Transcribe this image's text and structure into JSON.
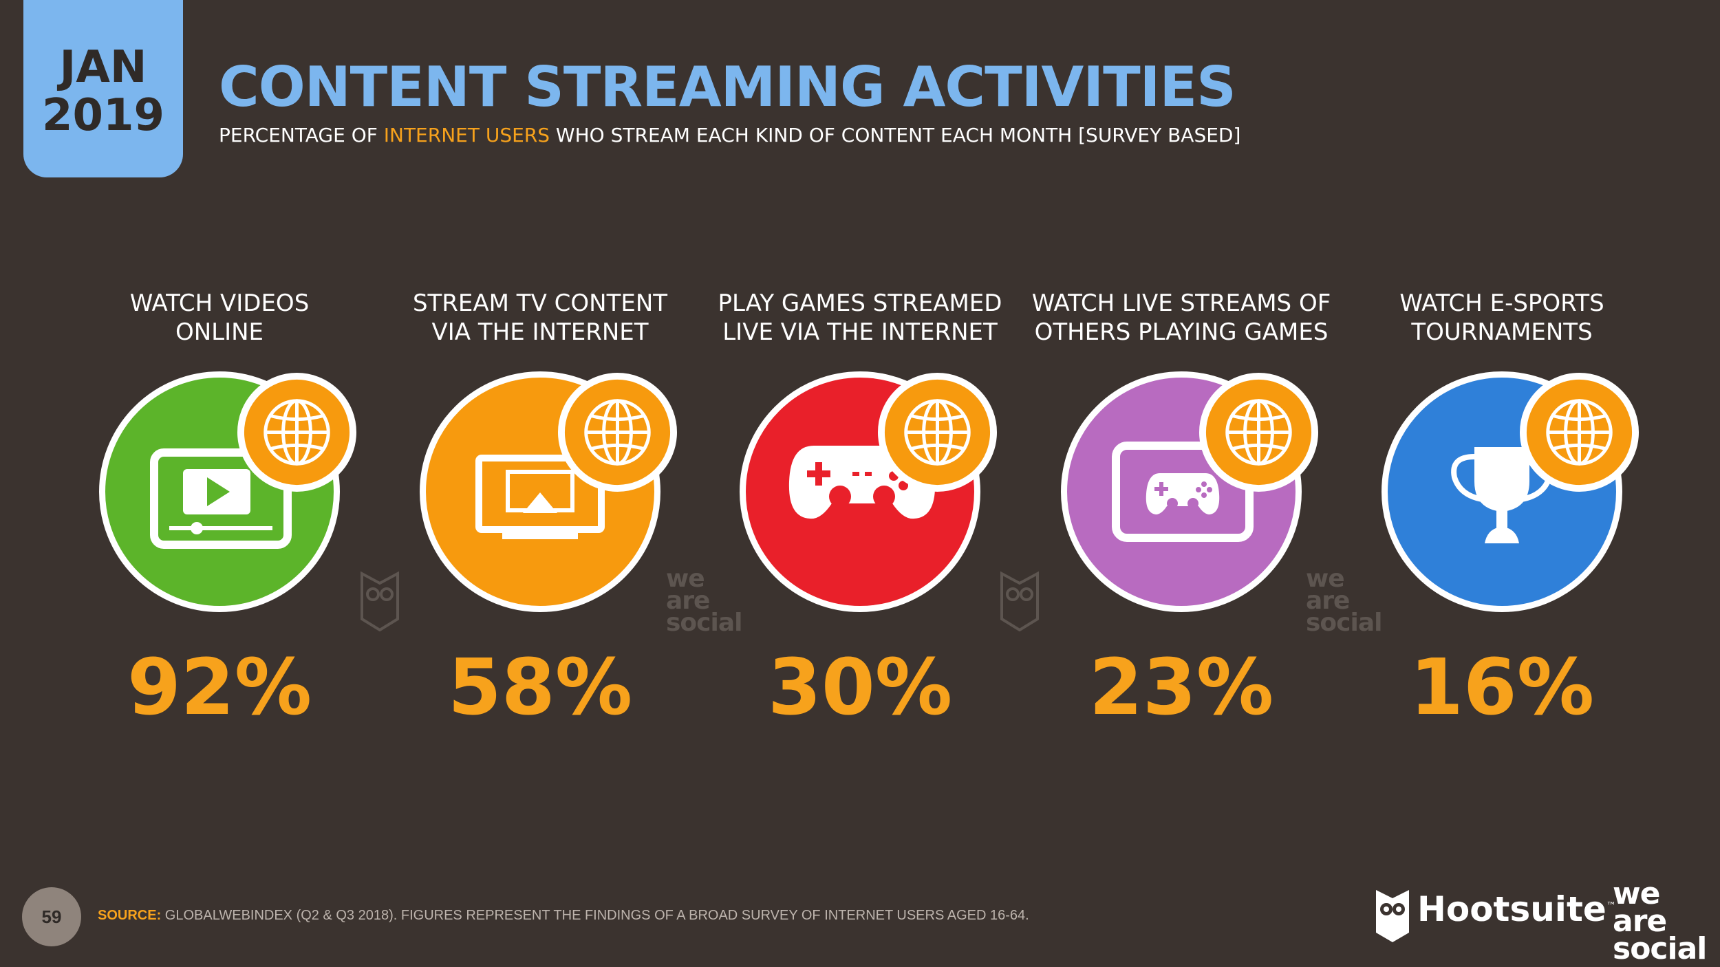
{
  "header": {
    "date_month": "JAN",
    "date_year": "2019",
    "title": "CONTENT STREAMING ACTIVITIES",
    "subtitle_pre": "PERCENTAGE OF ",
    "subtitle_highlight": "INTERNET USERS",
    "subtitle_post": " WHO STREAM EACH KIND OF CONTENT EACH MONTH [SURVEY BASED]"
  },
  "items": [
    {
      "label": "WATCH VIDEOS\nONLINE",
      "value": "92%",
      "color": "#5cb42a",
      "icon": "video-player-icon"
    },
    {
      "label": "STREAM TV CONTENT\nVIA THE INTERNET",
      "value": "58%",
      "color": "#f79a0e",
      "icon": "tv-airplay-icon"
    },
    {
      "label": "PLAY GAMES STREAMED\nLIVE VIA THE INTERNET",
      "value": "30%",
      "color": "#e9202a",
      "icon": "gamepad-icon"
    },
    {
      "label": "WATCH LIVE STREAMS OF\nOTHERS PLAYING GAMES",
      "value": "23%",
      "color": "#b86bc0",
      "icon": "gamepad-screen-icon"
    },
    {
      "label": "WATCH E-SPORTS\nTOURNAMENTS",
      "value": "16%",
      "color": "#2f80d9",
      "icon": "trophy-icon"
    }
  ],
  "globe_icon": "globe-icon",
  "watermarks": {
    "we": "we",
    "are": "are",
    "social": "social"
  },
  "footer": {
    "page_number": "59",
    "source_label": "SOURCE:",
    "source_text": " GLOBALWEBINDEX (Q2 & Q3 2018). FIGURES REPRESENT THE FINDINGS OF A BROAD SURVEY OF INTERNET USERS AGED 16-64.",
    "brand_hootsuite": "Hootsuite",
    "brand_tm": "™",
    "brand_was_1": "we",
    "brand_was_2": "are",
    "brand_was_3": "social"
  },
  "colors": {
    "accent_blue": "#7cb6ee",
    "accent_orange": "#f7a21c",
    "background": "#3b332f"
  }
}
